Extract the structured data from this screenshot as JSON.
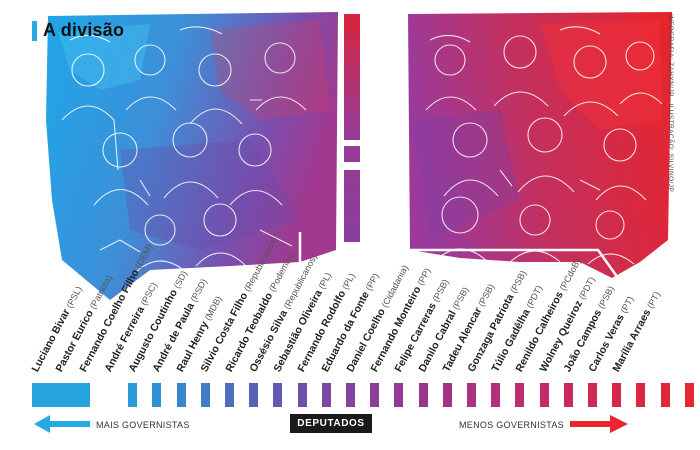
{
  "title": "A divisão",
  "credit": "INFOGRAFIA: ZAHYN/JP · ILUSTRAÇÃO: SILVINO/JP",
  "axis": {
    "left_label": "MAIS GOVERNISTAS",
    "center_label": "DEPUTADOS",
    "right_label": "MENOS GOVERNISTAS"
  },
  "colors": {
    "blue": "#27a9e1",
    "purple": "#8c3a9c",
    "red": "#e8262d",
    "dark": "#1a1a1a"
  },
  "deputies": [
    {
      "name": "Luciano Bivar",
      "party": "(PSL)",
      "color": "#27a3de"
    },
    {
      "name": "Pastor Eurico",
      "party": "(Patriota)",
      "color": "#2b9ad9"
    },
    {
      "name": "Fernando Coelho Filho",
      "party": "(DEM)",
      "color": "#3091d4"
    },
    {
      "name": "André Ferreira",
      "party": "(PSC)",
      "color": "#3787ce"
    },
    {
      "name": "Augusto Coutinho",
      "party": "(SD)",
      "color": "#417ac7"
    },
    {
      "name": "André de Paula",
      "party": "(PSD)",
      "color": "#4d6dbf"
    },
    {
      "name": "Raul Henry",
      "party": "(MDB)",
      "color": "#5862b8"
    },
    {
      "name": "Silvio Costa Filho",
      "party": "(Republicanos)",
      "color": "#6358b1"
    },
    {
      "name": "Ricardo Teobaldo",
      "party": "(Podemos)",
      "color": "#6e4fa9"
    },
    {
      "name": "Ossésio Silva",
      "party": "(Republicanos)",
      "color": "#7848a3"
    },
    {
      "name": "Sebastião Oliveira",
      "party": "(PL)",
      "color": "#82429e"
    },
    {
      "name": "Fernando Rodolfo",
      "party": "(PL)",
      "color": "#8b3d98"
    },
    {
      "name": "Eduardo da Fonte",
      "party": "(PP)",
      "color": "#943993"
    },
    {
      "name": "Daniel Coelho",
      "party": "(Cidadania)",
      "color": "#9c368d"
    },
    {
      "name": "Fernando Monteiro",
      "party": "(PP)",
      "color": "#a43386"
    },
    {
      "name": "Felipe Carreras",
      "party": "(PSB)",
      "color": "#ac3180"
    },
    {
      "name": "Danilo Cabral",
      "party": "(PSB)",
      "color": "#b32f78"
    },
    {
      "name": "Tadeu Alencar",
      "party": "(PSB)",
      "color": "#ba2d70"
    },
    {
      "name": "Gonzaga Patriota",
      "party": "(PSB)",
      "color": "#c12b67"
    },
    {
      "name": "Túlio Gadêlha",
      "party": "(PDT)",
      "color": "#c8295e"
    },
    {
      "name": "Renildo Calheiros",
      "party": "(PCdoB)",
      "color": "#ce2855"
    },
    {
      "name": "Wolney Queiroz",
      "party": "(PDT)",
      "color": "#d4274b"
    },
    {
      "name": "João Campos",
      "party": "(PSB)",
      "color": "#da2742"
    },
    {
      "name": "Carlos Veras",
      "party": "(PT)",
      "color": "#e02639"
    },
    {
      "name": "Marília Arraes",
      "party": "(PT)",
      "color": "#e62630"
    }
  ]
}
